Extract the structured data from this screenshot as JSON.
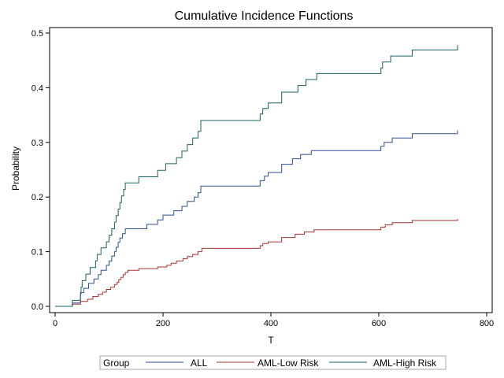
{
  "chart_data": {
    "type": "line",
    "step": true,
    "title": "Cumulative Incidence Functions",
    "xlabel": "T",
    "ylabel": "Probability",
    "xlim": [
      0,
      800
    ],
    "ylim": [
      0,
      0.5
    ],
    "xticks": [
      "0",
      "200",
      "400",
      "600",
      "800"
    ],
    "yticks": [
      "0.0",
      "0.1",
      "0.2",
      "0.3",
      "0.4",
      "0.5"
    ],
    "grid": false,
    "legend": {
      "position": "bottom",
      "title": "Group",
      "entries": [
        "ALL",
        "AML-Low Risk",
        "AML-High Risk"
      ]
    },
    "series": [
      {
        "name": "ALL",
        "color": "#2b4f8f",
        "points": [
          [
            0,
            0
          ],
          [
            32,
            0
          ],
          [
            32,
            0.006
          ],
          [
            47,
            0.006
          ],
          [
            47,
            0.025
          ],
          [
            53,
            0.025
          ],
          [
            53,
            0.033
          ],
          [
            62,
            0.033
          ],
          [
            62,
            0.042
          ],
          [
            72,
            0.042
          ],
          [
            72,
            0.05
          ],
          [
            80,
            0.05
          ],
          [
            80,
            0.058
          ],
          [
            85,
            0.058
          ],
          [
            85,
            0.066
          ],
          [
            95,
            0.066
          ],
          [
            95,
            0.075
          ],
          [
            100,
            0.075
          ],
          [
            100,
            0.083
          ],
          [
            105,
            0.083
          ],
          [
            105,
            0.092
          ],
          [
            110,
            0.092
          ],
          [
            110,
            0.1
          ],
          [
            113,
            0.1
          ],
          [
            113,
            0.108
          ],
          [
            117,
            0.108
          ],
          [
            117,
            0.117
          ],
          [
            120,
            0.117
          ],
          [
            120,
            0.125
          ],
          [
            125,
            0.125
          ],
          [
            125,
            0.133
          ],
          [
            130,
            0.133
          ],
          [
            130,
            0.142
          ],
          [
            170,
            0.142
          ],
          [
            170,
            0.15
          ],
          [
            190,
            0.15
          ],
          [
            190,
            0.158
          ],
          [
            200,
            0.158
          ],
          [
            200,
            0.167
          ],
          [
            220,
            0.167
          ],
          [
            220,
            0.175
          ],
          [
            235,
            0.175
          ],
          [
            235,
            0.183
          ],
          [
            245,
            0.183
          ],
          [
            245,
            0.192
          ],
          [
            258,
            0.192
          ],
          [
            258,
            0.2
          ],
          [
            265,
            0.2
          ],
          [
            265,
            0.208
          ],
          [
            270,
            0.208
          ],
          [
            270,
            0.22
          ],
          [
            380,
            0.22
          ],
          [
            380,
            0.23
          ],
          [
            388,
            0.23
          ],
          [
            388,
            0.238
          ],
          [
            395,
            0.238
          ],
          [
            395,
            0.245
          ],
          [
            420,
            0.245
          ],
          [
            420,
            0.26
          ],
          [
            440,
            0.26
          ],
          [
            440,
            0.27
          ],
          [
            455,
            0.27
          ],
          [
            455,
            0.278
          ],
          [
            475,
            0.278
          ],
          [
            475,
            0.285
          ],
          [
            604,
            0.285
          ],
          [
            604,
            0.293
          ],
          [
            610,
            0.293
          ],
          [
            610,
            0.3
          ],
          [
            625,
            0.3
          ],
          [
            625,
            0.308
          ],
          [
            662,
            0.308
          ],
          [
            662,
            0.316
          ],
          [
            746,
            0.316
          ],
          [
            746,
            0.322
          ]
        ]
      },
      {
        "name": "AML-Low Risk",
        "color": "#a8322d",
        "points": [
          [
            0,
            0
          ],
          [
            32,
            0
          ],
          [
            32,
            0.004
          ],
          [
            47,
            0.004
          ],
          [
            47,
            0.009
          ],
          [
            60,
            0.009
          ],
          [
            60,
            0.013
          ],
          [
            70,
            0.013
          ],
          [
            70,
            0.018
          ],
          [
            80,
            0.018
          ],
          [
            80,
            0.022
          ],
          [
            88,
            0.022
          ],
          [
            88,
            0.026
          ],
          [
            95,
            0.026
          ],
          [
            95,
            0.031
          ],
          [
            103,
            0.031
          ],
          [
            103,
            0.035
          ],
          [
            110,
            0.035
          ],
          [
            110,
            0.04
          ],
          [
            115,
            0.04
          ],
          [
            115,
            0.044
          ],
          [
            118,
            0.044
          ],
          [
            118,
            0.049
          ],
          [
            122,
            0.049
          ],
          [
            122,
            0.053
          ],
          [
            126,
            0.053
          ],
          [
            126,
            0.058
          ],
          [
            130,
            0.058
          ],
          [
            130,
            0.062
          ],
          [
            135,
            0.062
          ],
          [
            135,
            0.066
          ],
          [
            155,
            0.066
          ],
          [
            155,
            0.069
          ],
          [
            190,
            0.069
          ],
          [
            190,
            0.072
          ],
          [
            207,
            0.072
          ],
          [
            207,
            0.075
          ],
          [
            215,
            0.075
          ],
          [
            215,
            0.079
          ],
          [
            225,
            0.079
          ],
          [
            225,
            0.083
          ],
          [
            237,
            0.083
          ],
          [
            237,
            0.087
          ],
          [
            245,
            0.087
          ],
          [
            245,
            0.091
          ],
          [
            255,
            0.091
          ],
          [
            255,
            0.095
          ],
          [
            265,
            0.095
          ],
          [
            265,
            0.1
          ],
          [
            272,
            0.1
          ],
          [
            272,
            0.106
          ],
          [
            380,
            0.106
          ],
          [
            380,
            0.111
          ],
          [
            385,
            0.111
          ],
          [
            385,
            0.115
          ],
          [
            395,
            0.115
          ],
          [
            395,
            0.118
          ],
          [
            420,
            0.118
          ],
          [
            420,
            0.126
          ],
          [
            445,
            0.126
          ],
          [
            445,
            0.132
          ],
          [
            462,
            0.132
          ],
          [
            462,
            0.136
          ],
          [
            480,
            0.136
          ],
          [
            480,
            0.14
          ],
          [
            604,
            0.14
          ],
          [
            604,
            0.145
          ],
          [
            612,
            0.145
          ],
          [
            612,
            0.149
          ],
          [
            625,
            0.149
          ],
          [
            625,
            0.153
          ],
          [
            662,
            0.153
          ],
          [
            662,
            0.157
          ],
          [
            746,
            0.157
          ],
          [
            746,
            0.16
          ]
        ]
      },
      {
        "name": "AML-High Risk",
        "color": "#1a6060",
        "points": [
          [
            0,
            0
          ],
          [
            32,
            0
          ],
          [
            32,
            0.011
          ],
          [
            47,
            0.011
          ],
          [
            47,
            0.023
          ],
          [
            48,
            0.023
          ],
          [
            48,
            0.035
          ],
          [
            50,
            0.035
          ],
          [
            50,
            0.047
          ],
          [
            57,
            0.047
          ],
          [
            57,
            0.059
          ],
          [
            65,
            0.059
          ],
          [
            65,
            0.071
          ],
          [
            75,
            0.071
          ],
          [
            75,
            0.083
          ],
          [
            78,
            0.083
          ],
          [
            78,
            0.095
          ],
          [
            85,
            0.095
          ],
          [
            85,
            0.107
          ],
          [
            95,
            0.107
          ],
          [
            95,
            0.118
          ],
          [
            100,
            0.118
          ],
          [
            100,
            0.13
          ],
          [
            105,
            0.13
          ],
          [
            105,
            0.142
          ],
          [
            110,
            0.142
          ],
          [
            110,
            0.154
          ],
          [
            113,
            0.154
          ],
          [
            113,
            0.166
          ],
          [
            117,
            0.166
          ],
          [
            117,
            0.178
          ],
          [
            120,
            0.178
          ],
          [
            120,
            0.19
          ],
          [
            123,
            0.19
          ],
          [
            123,
            0.202
          ],
          [
            127,
            0.202
          ],
          [
            127,
            0.214
          ],
          [
            130,
            0.214
          ],
          [
            130,
            0.226
          ],
          [
            155,
            0.226
          ],
          [
            155,
            0.237
          ],
          [
            190,
            0.237
          ],
          [
            190,
            0.249
          ],
          [
            205,
            0.249
          ],
          [
            205,
            0.261
          ],
          [
            225,
            0.261
          ],
          [
            225,
            0.272
          ],
          [
            235,
            0.272
          ],
          [
            235,
            0.284
          ],
          [
            245,
            0.284
          ],
          [
            245,
            0.296
          ],
          [
            255,
            0.296
          ],
          [
            255,
            0.308
          ],
          [
            265,
            0.308
          ],
          [
            265,
            0.32
          ],
          [
            270,
            0.32
          ],
          [
            270,
            0.34
          ],
          [
            380,
            0.34
          ],
          [
            380,
            0.352
          ],
          [
            385,
            0.352
          ],
          [
            385,
            0.362
          ],
          [
            395,
            0.362
          ],
          [
            395,
            0.372
          ],
          [
            420,
            0.372
          ],
          [
            420,
            0.392
          ],
          [
            450,
            0.392
          ],
          [
            450,
            0.404
          ],
          [
            465,
            0.404
          ],
          [
            465,
            0.415
          ],
          [
            485,
            0.415
          ],
          [
            485,
            0.426
          ],
          [
            604,
            0.426
          ],
          [
            604,
            0.436
          ],
          [
            607,
            0.436
          ],
          [
            607,
            0.447
          ],
          [
            622,
            0.447
          ],
          [
            622,
            0.458
          ],
          [
            662,
            0.458
          ],
          [
            662,
            0.469
          ],
          [
            746,
            0.469
          ],
          [
            746,
            0.478
          ]
        ]
      }
    ]
  }
}
